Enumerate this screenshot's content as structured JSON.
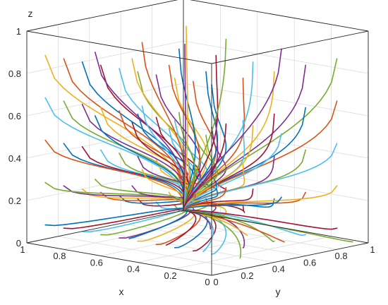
{
  "chart_data": {
    "type": "line",
    "subtype": "3d-trajectory-plot",
    "title": "",
    "xlabel": "x",
    "ylabel": "y",
    "zlabel": "z",
    "xlim": [
      0,
      1
    ],
    "ylim": [
      0,
      1
    ],
    "zlim": [
      0,
      1
    ],
    "x_ticks": [
      "0",
      "0.2",
      "0.4",
      "0.6",
      "0.8",
      "1"
    ],
    "y_ticks": [
      "0",
      "0.2",
      "0.4",
      "0.6",
      "0.8",
      "1"
    ],
    "z_ticks": [
      "0",
      "0.2",
      "0.4",
      "0.6",
      "0.8",
      "1"
    ],
    "grid": true,
    "legend": "none",
    "endpoint": [
      1,
      1,
      0
    ],
    "colors": [
      "#0072BD",
      "#D95319",
      "#EDB120",
      "#7E2F8E",
      "#77AC30",
      "#4DBEEE",
      "#A2142F"
    ],
    "start_points": [
      [
        0.0,
        0.0,
        0.9
      ],
      [
        0.1,
        0.0,
        0.9
      ],
      [
        0.2,
        0.0,
        0.9
      ],
      [
        0.3,
        0.0,
        0.9
      ],
      [
        0.4,
        0.0,
        0.9
      ],
      [
        0.5,
        0.0,
        0.9
      ],
      [
        0.6,
        0.0,
        0.9
      ],
      [
        0.7,
        0.0,
        0.9
      ],
      [
        0.8,
        0.0,
        0.9
      ],
      [
        0.9,
        0.0,
        0.9
      ],
      [
        0.0,
        0.0,
        0.7
      ],
      [
        0.1,
        0.0,
        0.7
      ],
      [
        0.2,
        0.0,
        0.7
      ],
      [
        0.3,
        0.0,
        0.7
      ],
      [
        0.4,
        0.0,
        0.7
      ],
      [
        0.5,
        0.0,
        0.7
      ],
      [
        0.6,
        0.0,
        0.7
      ],
      [
        0.7,
        0.0,
        0.7
      ],
      [
        0.8,
        0.0,
        0.7
      ],
      [
        0.9,
        0.0,
        0.7
      ],
      [
        0.0,
        0.0,
        0.5
      ],
      [
        0.1,
        0.0,
        0.5
      ],
      [
        0.2,
        0.0,
        0.5
      ],
      [
        0.3,
        0.0,
        0.5
      ],
      [
        0.4,
        0.0,
        0.5
      ],
      [
        0.5,
        0.0,
        0.5
      ],
      [
        0.6,
        0.0,
        0.5
      ],
      [
        0.7,
        0.0,
        0.5
      ],
      [
        0.8,
        0.0,
        0.5
      ],
      [
        0.9,
        0.0,
        0.5
      ],
      [
        0.0,
        0.0,
        0.3
      ],
      [
        0.1,
        0.0,
        0.3
      ],
      [
        0.2,
        0.0,
        0.3
      ],
      [
        0.3,
        0.0,
        0.3
      ],
      [
        0.4,
        0.0,
        0.3
      ],
      [
        0.5,
        0.0,
        0.3
      ],
      [
        0.6,
        0.0,
        0.3
      ],
      [
        0.7,
        0.0,
        0.3
      ],
      [
        0.8,
        0.0,
        0.3
      ],
      [
        0.9,
        0.0,
        0.3
      ],
      [
        0.0,
        0.0,
        0.1
      ],
      [
        0.1,
        0.0,
        0.1
      ],
      [
        0.2,
        0.0,
        0.1
      ],
      [
        0.3,
        0.0,
        0.1
      ],
      [
        0.4,
        0.0,
        0.1
      ],
      [
        0.5,
        0.0,
        0.1
      ],
      [
        0.6,
        0.0,
        0.1
      ],
      [
        0.7,
        0.0,
        0.1
      ],
      [
        0.8,
        0.0,
        0.1
      ],
      [
        0.9,
        0.0,
        0.1
      ],
      [
        0.0,
        0.2,
        0.9
      ],
      [
        0.0,
        0.4,
        0.9
      ],
      [
        0.0,
        0.6,
        0.9
      ],
      [
        0.0,
        0.8,
        0.9
      ],
      [
        0.0,
        0.2,
        0.7
      ],
      [
        0.0,
        0.4,
        0.7
      ],
      [
        0.0,
        0.6,
        0.7
      ],
      [
        0.0,
        0.8,
        0.7
      ],
      [
        0.0,
        0.2,
        0.5
      ],
      [
        0.0,
        0.4,
        0.5
      ],
      [
        0.0,
        0.6,
        0.5
      ],
      [
        0.0,
        0.8,
        0.5
      ],
      [
        0.0,
        0.2,
        0.3
      ],
      [
        0.0,
        0.4,
        0.3
      ],
      [
        0.0,
        0.6,
        0.3
      ],
      [
        0.0,
        0.8,
        0.3
      ],
      [
        0.0,
        0.2,
        0.1
      ],
      [
        0.0,
        0.4,
        0.1
      ],
      [
        0.0,
        0.6,
        0.1
      ],
      [
        0.0,
        0.8,
        0.1
      ],
      [
        0.2,
        0.2,
        0.9
      ],
      [
        0.4,
        0.2,
        0.9
      ],
      [
        0.6,
        0.2,
        0.9
      ],
      [
        0.8,
        0.2,
        0.9
      ],
      [
        0.2,
        0.2,
        0.6
      ],
      [
        0.4,
        0.2,
        0.6
      ],
      [
        0.6,
        0.2,
        0.6
      ],
      [
        0.8,
        0.2,
        0.6
      ],
      [
        0.2,
        0.2,
        0.3
      ],
      [
        0.4,
        0.2,
        0.3
      ],
      [
        0.6,
        0.2,
        0.3
      ],
      [
        0.8,
        0.2,
        0.3
      ],
      [
        0.2,
        0.5,
        0.9
      ],
      [
        0.4,
        0.5,
        0.9
      ],
      [
        0.6,
        0.5,
        0.9
      ],
      [
        0.8,
        0.5,
        0.9
      ],
      [
        0.2,
        0.5,
        0.6
      ],
      [
        0.4,
        0.5,
        0.6
      ],
      [
        0.6,
        0.5,
        0.6
      ],
      [
        0.8,
        0.5,
        0.6
      ],
      [
        0.2,
        0.5,
        0.3
      ],
      [
        0.4,
        0.5,
        0.3
      ],
      [
        0.6,
        0.5,
        0.3
      ],
      [
        0.8,
        0.5,
        0.3
      ],
      [
        0.3,
        0.8,
        0.9
      ],
      [
        0.6,
        0.8,
        0.9
      ],
      [
        0.3,
        0.8,
        0.5
      ],
      [
        0.6,
        0.8,
        0.5
      ],
      [
        0.3,
        0.8,
        0.2
      ],
      [
        0.6,
        0.8,
        0.2
      ],
      [
        0.9,
        0.9,
        0.9
      ],
      [
        0.95,
        0.95,
        0.8
      ],
      [
        0.1,
        0.3,
        0.02
      ],
      [
        0.3,
        0.3,
        0.02
      ],
      [
        0.5,
        0.3,
        0.02
      ],
      [
        0.7,
        0.3,
        0.02
      ],
      [
        0.2,
        0.7,
        0.02
      ],
      [
        0.4,
        0.7,
        0.02
      ],
      [
        0.6,
        0.7,
        0.02
      ],
      [
        0.0,
        0.9,
        0.02
      ]
    ]
  }
}
